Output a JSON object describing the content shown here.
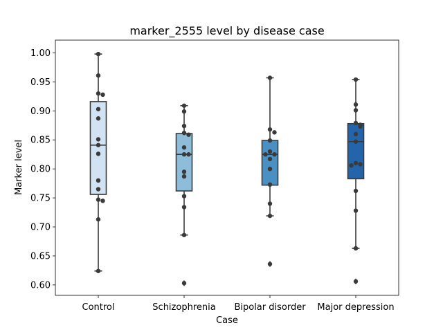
{
  "chart_data": {
    "type": "box",
    "title": "marker_2555 level by disease case",
    "xlabel": "Case",
    "ylabel": "Marker level",
    "ylim": [
      0.582,
      1.022
    ],
    "yticks": [
      0.6,
      0.65,
      0.7,
      0.75,
      0.8,
      0.85,
      0.9,
      0.95,
      1.0
    ],
    "ytick_labels": [
      "0.60",
      "0.65",
      "0.70",
      "0.75",
      "0.80",
      "0.85",
      "0.90",
      "0.95",
      "1.00"
    ],
    "categories": [
      "Control",
      "Schizophrenia",
      "Bipolar disorder",
      "Major depression"
    ],
    "colors": [
      "#d1e2f2",
      "#8ebdda",
      "#4a90c3",
      "#2364aa"
    ],
    "grid": false,
    "boxes": [
      {
        "q1": 0.756,
        "median": 0.841,
        "q3": 0.916,
        "whisker_low": 0.624,
        "whisker_high": 0.998,
        "outliers": []
      },
      {
        "q1": 0.762,
        "median": 0.825,
        "q3": 0.861,
        "whisker_low": 0.686,
        "whisker_high": 0.909,
        "outliers": [
          0.603
        ]
      },
      {
        "q1": 0.772,
        "median": 0.825,
        "q3": 0.849,
        "whisker_low": 0.719,
        "whisker_high": 0.957,
        "outliers": [
          0.636
        ]
      },
      {
        "q1": 0.783,
        "median": 0.847,
        "q3": 0.878,
        "whisker_low": 0.663,
        "whisker_high": 0.954,
        "outliers": [
          0.606
        ]
      }
    ],
    "points": [
      [
        0.998,
        0.961,
        0.93,
        0.928,
        0.903,
        0.887,
        0.851,
        0.841,
        0.826,
        0.78,
        0.765,
        0.747,
        0.745,
        0.713,
        0.624
      ],
      [
        0.909,
        0.899,
        0.874,
        0.862,
        0.859,
        0.837,
        0.825,
        0.825,
        0.795,
        0.787,
        0.753,
        0.734,
        0.686,
        0.603
      ],
      [
        0.957,
        0.868,
        0.863,
        0.849,
        0.83,
        0.825,
        0.825,
        0.817,
        0.8,
        0.773,
        0.74,
        0.719,
        0.636
      ],
      [
        0.954,
        0.911,
        0.901,
        0.879,
        0.876,
        0.873,
        0.86,
        0.847,
        0.81,
        0.808,
        0.806,
        0.762,
        0.728,
        0.663,
        0.606
      ]
    ]
  }
}
